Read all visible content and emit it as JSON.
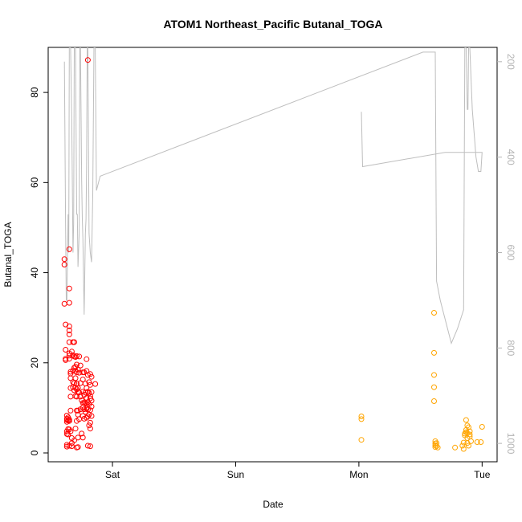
{
  "chart_data": {
    "type": "scatter",
    "title": "ATOM1 Northeast_Pacific Butanal_TOGA",
    "xlabel": "Date",
    "ylabel": "Butanal_TOGA",
    "x_unit": "days from Saturday 00:00",
    "xlim": [
      -0.45,
      3.05
    ],
    "ylim": [
      0,
      90
    ],
    "x_ticks": [
      {
        "label": "Sat",
        "value": 0
      },
      {
        "label": "Sun",
        "value": 1
      },
      {
        "label": "Mon",
        "value": 2
      },
      {
        "label": "Tue",
        "value": 3
      }
    ],
    "y_ticks": [
      0,
      20,
      40,
      60,
      80
    ],
    "y2lim": [
      1020,
      170
    ],
    "y2_ticks": [
      200,
      400,
      600,
      800,
      1000
    ],
    "colors": {
      "series1": "#ff0000",
      "series2": "#ffa500",
      "altitude": "#bebebe",
      "axis": "#000000",
      "axis2": "#b4b4b4"
    },
    "series": [
      {
        "color": "#ff0000",
        "points": [
          [
            -0.39,
            43
          ],
          [
            -0.39,
            41.8
          ],
          [
            -0.39,
            33.1
          ],
          [
            -0.38,
            28.5
          ],
          [
            -0.38,
            22.9
          ],
          [
            -0.38,
            20.9
          ],
          [
            -0.38,
            20.6
          ],
          [
            -0.37,
            8.3
          ],
          [
            -0.37,
            7.6
          ],
          [
            -0.37,
            7.3
          ],
          [
            -0.37,
            6.9
          ],
          [
            -0.37,
            4.8
          ],
          [
            -0.37,
            4.2
          ],
          [
            -0.37,
            1.8
          ],
          [
            -0.37,
            1.4
          ],
          [
            -0.36,
            7.9
          ],
          [
            -0.36,
            7.2
          ],
          [
            -0.36,
            5.3
          ],
          [
            -0.36,
            4.1
          ],
          [
            -0.35,
            7.4
          ],
          [
            -0.35,
            7.1
          ],
          [
            -0.35,
            5.2
          ],
          [
            -0.35,
            1.6
          ],
          [
            -0.35,
            45.2
          ],
          [
            -0.35,
            36.5
          ],
          [
            -0.35,
            33.3
          ],
          [
            -0.35,
            28.1
          ],
          [
            -0.35,
            27.2
          ],
          [
            -0.35,
            26.3
          ],
          [
            -0.35,
            24.6
          ],
          [
            -0.35,
            22.1
          ],
          [
            -0.35,
            21.6
          ],
          [
            -0.35,
            20.9
          ],
          [
            -0.34,
            18
          ],
          [
            -0.34,
            17.6
          ],
          [
            -0.34,
            16.6
          ],
          [
            -0.34,
            14.4
          ],
          [
            -0.34,
            12.5
          ],
          [
            -0.34,
            9.4
          ],
          [
            -0.34,
            4.8
          ],
          [
            -0.33,
            3.3
          ],
          [
            -0.33,
            2.2
          ],
          [
            -0.33,
            1.5
          ],
          [
            -0.33,
            22.5
          ],
          [
            -0.32,
            24.6
          ],
          [
            -0.32,
            21.7
          ],
          [
            -0.32,
            18.3
          ],
          [
            -0.32,
            15.7
          ],
          [
            -0.32,
            14.6
          ],
          [
            -0.31,
            24.6
          ],
          [
            -0.31,
            21.4
          ],
          [
            -0.31,
            18.9
          ],
          [
            -0.31,
            15.5
          ],
          [
            -0.31,
            13.9
          ],
          [
            -0.31,
            2.8
          ],
          [
            -0.3,
            21.3
          ],
          [
            -0.3,
            19.1
          ],
          [
            -0.3,
            18.2
          ],
          [
            -0.3,
            16.6
          ],
          [
            -0.3,
            14.5
          ],
          [
            -0.3,
            12.6
          ],
          [
            -0.3,
            5.4
          ],
          [
            -0.29,
            21.5
          ],
          [
            -0.29,
            19.6
          ],
          [
            -0.29,
            17.9
          ],
          [
            -0.29,
            15.4
          ],
          [
            -0.29,
            14.1
          ],
          [
            -0.29,
            12.5
          ],
          [
            -0.29,
            9.4
          ],
          [
            -0.29,
            7.1
          ],
          [
            -0.29,
            1.2
          ],
          [
            -0.28,
            18.5
          ],
          [
            -0.28,
            14.4
          ],
          [
            -0.28,
            13.6
          ],
          [
            -0.28,
            9.4
          ],
          [
            -0.28,
            8.5
          ],
          [
            -0.28,
            3.4
          ],
          [
            -0.28,
            1.3
          ],
          [
            -0.27,
            21.4
          ],
          [
            -0.27,
            17.8
          ],
          [
            -0.27,
            13.4
          ],
          [
            -0.27,
            7.5
          ],
          [
            -0.26,
            19.4
          ],
          [
            -0.26,
            15.5
          ],
          [
            -0.26,
            12.5
          ],
          [
            -0.26,
            9.7
          ],
          [
            -0.25,
            11.7
          ],
          [
            -0.25,
            4.3
          ],
          [
            -0.24,
            17.9
          ],
          [
            -0.24,
            16.3
          ],
          [
            -0.24,
            13.6
          ],
          [
            -0.24,
            11.1
          ],
          [
            -0.24,
            10.1
          ],
          [
            -0.24,
            8.2
          ],
          [
            -0.24,
            3.4
          ],
          [
            -0.23,
            17.9
          ],
          [
            -0.23,
            12.9
          ],
          [
            -0.23,
            11.1
          ],
          [
            -0.23,
            9.7
          ],
          [
            -0.23,
            7.6
          ],
          [
            -0.22,
            15.4
          ],
          [
            -0.22,
            13.4
          ],
          [
            -0.22,
            11.1
          ],
          [
            -0.22,
            9.1
          ],
          [
            -0.21,
            20.8
          ],
          [
            -0.21,
            18.2
          ],
          [
            -0.21,
            14.4
          ],
          [
            -0.21,
            12.2
          ],
          [
            -0.21,
            10.9
          ],
          [
            -0.21,
            9.8
          ],
          [
            -0.21,
            7.8
          ],
          [
            -0.2,
            87.2
          ],
          [
            -0.2,
            17.3
          ],
          [
            -0.2,
            13.6
          ],
          [
            -0.2,
            11.3
          ],
          [
            -0.2,
            9.6
          ],
          [
            -0.2,
            8.1
          ],
          [
            -0.2,
            1.6
          ],
          [
            -0.19,
            15.7
          ],
          [
            -0.19,
            13.3
          ],
          [
            -0.19,
            10.8
          ],
          [
            -0.19,
            8.5
          ],
          [
            -0.19,
            6.1
          ],
          [
            -0.18,
            17.5
          ],
          [
            -0.18,
            15.1
          ],
          [
            -0.18,
            12.6
          ],
          [
            -0.18,
            12.1
          ],
          [
            -0.18,
            9.5
          ],
          [
            -0.18,
            6.7
          ],
          [
            -0.18,
            5.4
          ],
          [
            -0.18,
            1.5
          ],
          [
            -0.17,
            16.9
          ],
          [
            -0.17,
            13.5
          ],
          [
            -0.17,
            11.6
          ],
          [
            -0.17,
            10.3
          ],
          [
            -0.17,
            8.2
          ],
          [
            -0.14,
            15.3
          ]
        ]
      },
      {
        "color": "#ffa500",
        "points": [
          [
            2.02,
            8.1
          ],
          [
            2.02,
            7.5
          ],
          [
            2.02,
            2.9
          ],
          [
            2.61,
            31.1
          ],
          [
            2.61,
            22.2
          ],
          [
            2.61,
            17.3
          ],
          [
            2.61,
            14.6
          ],
          [
            2.61,
            11.5
          ],
          [
            2.62,
            2.6
          ],
          [
            2.62,
            2.1
          ],
          [
            2.62,
            1.7
          ],
          [
            2.62,
            1.3
          ],
          [
            2.63,
            2.2
          ],
          [
            2.63,
            1.5
          ],
          [
            2.64,
            1.2
          ],
          [
            2.78,
            1.2
          ],
          [
            2.84,
            1.6
          ],
          [
            2.85,
            0.9
          ],
          [
            2.85,
            2.3
          ],
          [
            2.86,
            4.3
          ],
          [
            2.86,
            3.9
          ],
          [
            2.87,
            7.3
          ],
          [
            2.87,
            5.1
          ],
          [
            2.87,
            4.6
          ],
          [
            2.88,
            6.1
          ],
          [
            2.88,
            4.4
          ],
          [
            2.88,
            3.3
          ],
          [
            2.88,
            2.2
          ],
          [
            2.89,
            1.6
          ],
          [
            2.89,
            5.7
          ],
          [
            2.9,
            4.8
          ],
          [
            2.9,
            4.1
          ],
          [
            2.9,
            3.6
          ],
          [
            2.91,
            2.6
          ],
          [
            2.96,
            2.4
          ],
          [
            2.99,
            2.4
          ],
          [
            3.0,
            5.8
          ]
        ]
      }
    ],
    "altitude_trace": [
      [
        -0.39,
        200
      ],
      [
        -0.38,
        550
      ],
      [
        -0.375,
        700
      ],
      [
        -0.37,
        700
      ],
      [
        -0.36,
        520
      ],
      [
        -0.355,
        600
      ],
      [
        -0.35,
        170
      ],
      [
        -0.34,
        170
      ],
      [
        -0.33,
        330
      ],
      [
        -0.32,
        600
      ],
      [
        -0.315,
        540
      ],
      [
        -0.31,
        170
      ],
      [
        -0.3,
        170
      ],
      [
        -0.29,
        520
      ],
      [
        -0.285,
        520
      ],
      [
        -0.28,
        630
      ],
      [
        -0.27,
        560
      ],
      [
        -0.265,
        170
      ],
      [
        -0.26,
        170
      ],
      [
        -0.25,
        450
      ],
      [
        -0.245,
        530
      ],
      [
        -0.24,
        570
      ],
      [
        -0.23,
        730
      ],
      [
        -0.22,
        560
      ],
      [
        -0.215,
        530
      ],
      [
        -0.21,
        420
      ],
      [
        -0.205,
        170
      ],
      [
        -0.2,
        170
      ],
      [
        -0.19,
        560
      ],
      [
        -0.18,
        600
      ],
      [
        -0.17,
        620
      ],
      [
        -0.16,
        480
      ],
      [
        -0.15,
        170
      ],
      [
        -0.14,
        170
      ],
      [
        -0.13,
        470
      ],
      [
        -0.1,
        440
      ],
      [
        2.52,
        180
      ],
      [
        2.62,
        180
      ],
      [
        2.63,
        660
      ],
      [
        2.66,
        700
      ],
      [
        2.7,
        740
      ],
      [
        2.75,
        790
      ],
      [
        2.8,
        760
      ],
      [
        2.85,
        720
      ],
      [
        2.86,
        170
      ],
      [
        2.87,
        170
      ],
      [
        2.88,
        300
      ],
      [
        2.885,
        300
      ],
      [
        2.89,
        170
      ],
      [
        2.9,
        170
      ],
      [
        2.92,
        300
      ],
      [
        2.95,
        400
      ],
      [
        2.97,
        430
      ],
      [
        2.99,
        430
      ],
      [
        3.0,
        390
      ],
      [
        2.7,
        390
      ],
      [
        2.03,
        420
      ],
      [
        2.02,
        305
      ]
    ]
  }
}
